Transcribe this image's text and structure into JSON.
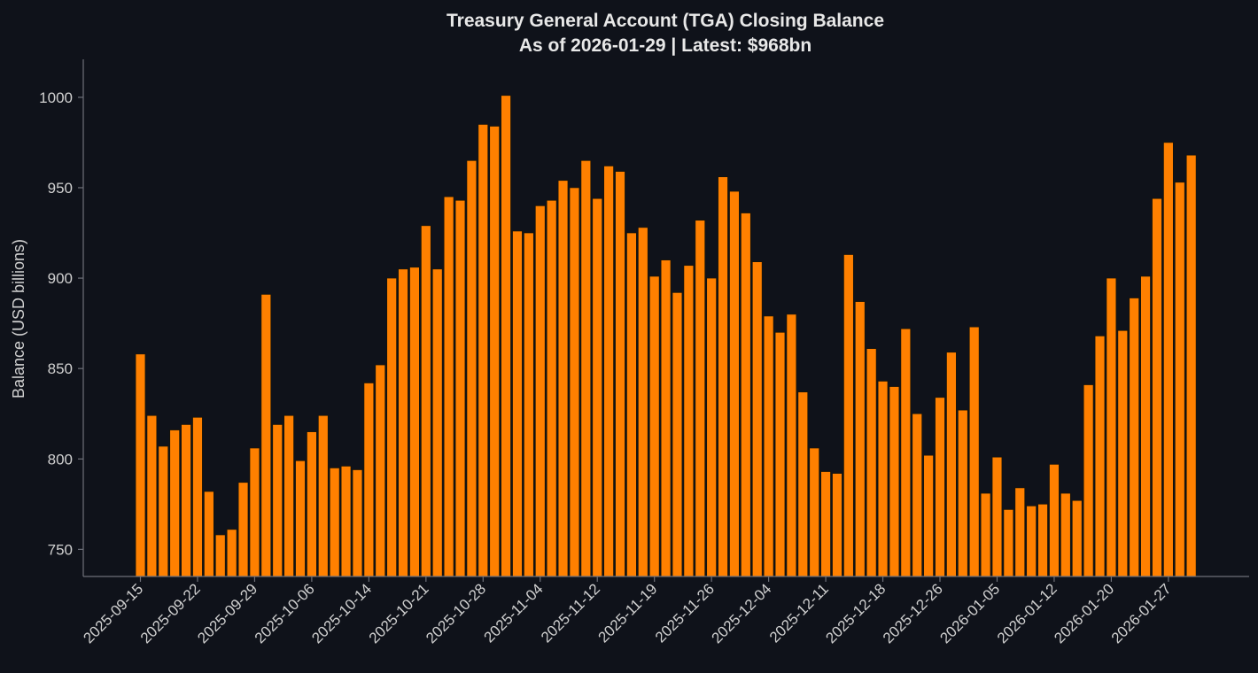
{
  "colors": {
    "background": "#0f121a",
    "bar": "#ff8000",
    "bar_edge": "#1a1400",
    "axis": "#6e7079",
    "text": "#d0d0d0",
    "title": "#e8e8e8"
  },
  "chart_data": {
    "type": "bar",
    "title": "Treasury General Account (TGA) Closing Balance",
    "subtitle": "As of 2026-01-29 | Latest: $968bn",
    "xlabel": "",
    "ylabel": "Balance (USD billions)",
    "ylim": [
      735,
      1021
    ],
    "yticks": [
      750,
      800,
      850,
      900,
      950,
      1000
    ],
    "grid": false,
    "xtick_labels": [
      {
        "label": "2025-09-15",
        "index": 0
      },
      {
        "label": "2025-09-22",
        "index": 5
      },
      {
        "label": "2025-09-29",
        "index": 10
      },
      {
        "label": "2025-10-06",
        "index": 15
      },
      {
        "label": "2025-10-14",
        "index": 20
      },
      {
        "label": "2025-10-21",
        "index": 25
      },
      {
        "label": "2025-10-28",
        "index": 30
      },
      {
        "label": "2025-11-04",
        "index": 35
      },
      {
        "label": "2025-11-12",
        "index": 40
      },
      {
        "label": "2025-11-19",
        "index": 45
      },
      {
        "label": "2025-11-26",
        "index": 50
      },
      {
        "label": "2025-12-04",
        "index": 55
      },
      {
        "label": "2025-12-11",
        "index": 60
      },
      {
        "label": "2025-12-18",
        "index": 65
      },
      {
        "label": "2025-12-26",
        "index": 70
      },
      {
        "label": "2026-01-05",
        "index": 75
      },
      {
        "label": "2026-01-12",
        "index": 80
      },
      {
        "label": "2026-01-20",
        "index": 85
      },
      {
        "label": "2026-01-27",
        "index": 90
      }
    ],
    "values": [
      858,
      824,
      807,
      816,
      819,
      823,
      782,
      758,
      761,
      787,
      806,
      891,
      819,
      824,
      799,
      815,
      824,
      795,
      796,
      794,
      842,
      852,
      900,
      905,
      906,
      929,
      905,
      945,
      943,
      965,
      985,
      984,
      1001,
      926,
      925,
      940,
      943,
      954,
      950,
      965,
      944,
      962,
      959,
      925,
      928,
      901,
      910,
      892,
      907,
      932,
      900,
      956,
      948,
      936,
      909,
      879,
      870,
      880,
      837,
      806,
      793,
      792,
      913,
      887,
      861,
      843,
      840,
      872,
      825,
      802,
      834,
      859,
      827,
      873,
      781,
      801,
      772,
      784,
      774,
      775,
      797,
      781,
      777,
      841,
      868,
      900,
      871,
      889,
      901,
      944,
      975,
      953,
      968
    ]
  }
}
